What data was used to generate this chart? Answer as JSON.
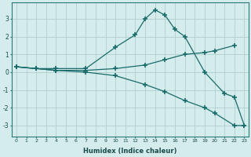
{
  "xlabel": "Humidex (Indice chaleur)",
  "bg_color": "#d4eceb",
  "grid_color": "#aecfce",
  "line_color": "#1a6b6b",
  "xlim": [
    -0.5,
    23.4
  ],
  "ylim": [
    -3.6,
    3.9
  ],
  "yticks": [
    -3,
    -2,
    -1,
    0,
    1,
    2,
    3
  ],
  "xticks": [
    0,
    1,
    2,
    3,
    4,
    5,
    6,
    7,
    8,
    9,
    10,
    11,
    12,
    13,
    14,
    15,
    16,
    17,
    18,
    19,
    20,
    21,
    22,
    23
  ],
  "series": [
    {
      "x": [
        0,
        2,
        4,
        7,
        10,
        12,
        13,
        14,
        15,
        16,
        17,
        19,
        21,
        22,
        23
      ],
      "y": [
        0.3,
        0.2,
        0.2,
        0.2,
        1.4,
        2.1,
        3.0,
        3.5,
        3.2,
        2.4,
        2.0,
        0.0,
        -1.2,
        -1.4,
        -3.0
      ]
    },
    {
      "x": [
        0,
        2,
        4,
        7,
        10,
        13,
        15,
        17,
        19,
        20,
        22
      ],
      "y": [
        0.3,
        0.2,
        0.1,
        0.1,
        0.2,
        0.4,
        0.7,
        1.0,
        1.1,
        1.2,
        1.5
      ]
    },
    {
      "x": [
        0,
        2,
        4,
        7,
        10,
        13,
        15,
        17,
        19,
        20,
        22,
        23
      ],
      "y": [
        0.3,
        0.2,
        0.1,
        0.0,
        -0.2,
        -0.7,
        -1.1,
        -1.6,
        -2.0,
        -2.3,
        -3.0,
        -3.0
      ]
    }
  ]
}
